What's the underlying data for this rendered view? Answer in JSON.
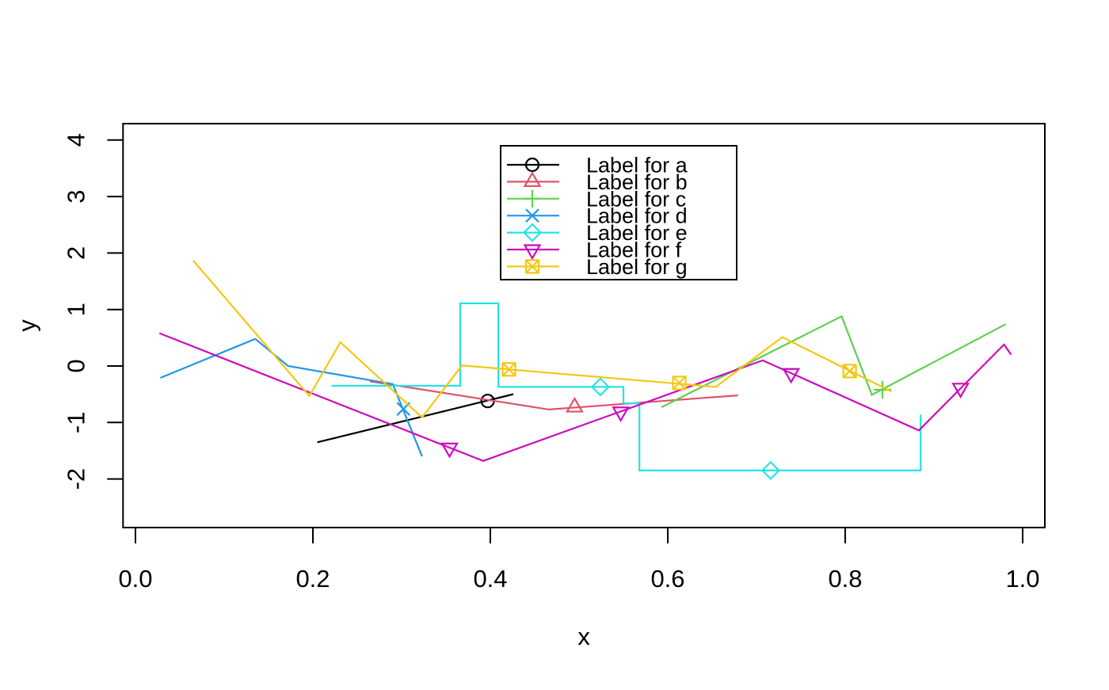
{
  "chart_data": {
    "type": "line",
    "title": "",
    "xlabel": "x",
    "ylabel": "y",
    "grid": false,
    "xlim": [
      -0.014,
      1.025
    ],
    "ylim": [
      -2.86,
      4.29
    ],
    "x_tick_values": [
      0.0,
      0.2,
      0.4,
      0.6,
      0.8,
      1.0
    ],
    "x_tick_labels": [
      "0.0",
      "0.2",
      "0.4",
      "0.6",
      "0.8",
      "1.0"
    ],
    "y_tick_values": [
      -2,
      -1,
      0,
      1,
      2,
      3,
      4
    ],
    "y_tick_labels": [
      "-2",
      "-1",
      "0",
      "1",
      "2",
      "3",
      "4"
    ],
    "legend_position": "top-center",
    "legend_labels": [
      "Label for a",
      "Label for b",
      "Label for c",
      "Label for d",
      "Label for e",
      "Label for f",
      "Label for g"
    ],
    "series": [
      {
        "name": "a",
        "label": "Label for a",
        "color": "#000000",
        "marker": "circle",
        "line": [
          [
            0.205,
            -1.35
          ],
          [
            0.426,
            -0.5
          ]
        ],
        "marker_points": [
          [
            0.397,
            -0.62
          ]
        ]
      },
      {
        "name": "b",
        "label": "Label for b",
        "color": "#DF536B",
        "marker": "triangle-up",
        "line": [
          [
            0.264,
            -0.27
          ],
          [
            0.466,
            -0.77
          ],
          [
            0.679,
            -0.52
          ]
        ],
        "marker_points": [
          [
            0.495,
            -0.73
          ]
        ]
      },
      {
        "name": "c",
        "label": "Label for c",
        "color": "#61D04F",
        "marker": "plus",
        "line": [
          [
            0.593,
            -0.73
          ],
          [
            0.796,
            0.88
          ],
          [
            0.83,
            -0.51
          ],
          [
            0.981,
            0.74
          ]
        ],
        "marker_points": [
          [
            0.842,
            -0.42
          ]
        ]
      },
      {
        "name": "d",
        "label": "Label for d",
        "color": "#2297E6",
        "marker": "x",
        "line": [
          [
            0.028,
            -0.21
          ],
          [
            0.135,
            0.48
          ],
          [
            0.172,
            0.0
          ],
          [
            0.29,
            -0.32
          ],
          [
            0.323,
            -1.6
          ]
        ],
        "marker_points": [
          [
            0.302,
            -0.76
          ]
        ]
      },
      {
        "name": "e",
        "label": "Label for e",
        "color": "#28E2E5",
        "marker": "diamond",
        "line": [
          [
            0.221,
            -0.35
          ],
          [
            0.366,
            -0.35
          ],
          [
            0.366,
            1.11
          ],
          [
            0.409,
            1.11
          ],
          [
            0.409,
            -0.37
          ],
          [
            0.55,
            -0.37
          ],
          [
            0.55,
            -0.66
          ],
          [
            0.568,
            -0.66
          ],
          [
            0.568,
            -1.85
          ],
          [
            0.885,
            -1.85
          ],
          [
            0.885,
            -0.86
          ]
        ],
        "marker_points": [
          [
            0.524,
            -0.37
          ],
          [
            0.716,
            -1.85
          ]
        ]
      },
      {
        "name": "f",
        "label": "Label for f",
        "color": "#CD0BBC",
        "marker": "triangle-down",
        "line": [
          [
            0.027,
            0.58
          ],
          [
            0.392,
            -1.68
          ],
          [
            0.707,
            0.1
          ],
          [
            0.883,
            -1.14
          ],
          [
            0.979,
            0.38
          ],
          [
            0.987,
            0.2
          ]
        ],
        "marker_points": [
          [
            0.354,
            -1.45
          ],
          [
            0.547,
            -0.81
          ],
          [
            0.739,
            -0.13
          ],
          [
            0.93,
            -0.39
          ]
        ]
      },
      {
        "name": "g",
        "label": "Label for g",
        "color": "#F5C710",
        "marker": "square-x",
        "line": [
          [
            0.065,
            1.87
          ],
          [
            0.196,
            -0.53
          ],
          [
            0.231,
            0.42
          ],
          [
            0.323,
            -0.91
          ],
          [
            0.368,
            0.01
          ],
          [
            0.654,
            -0.37
          ],
          [
            0.729,
            0.51
          ],
          [
            0.852,
            -0.45
          ]
        ],
        "marker_points": [
          [
            0.421,
            -0.06
          ],
          [
            0.613,
            -0.3
          ],
          [
            0.805,
            -0.09
          ]
        ]
      }
    ]
  }
}
